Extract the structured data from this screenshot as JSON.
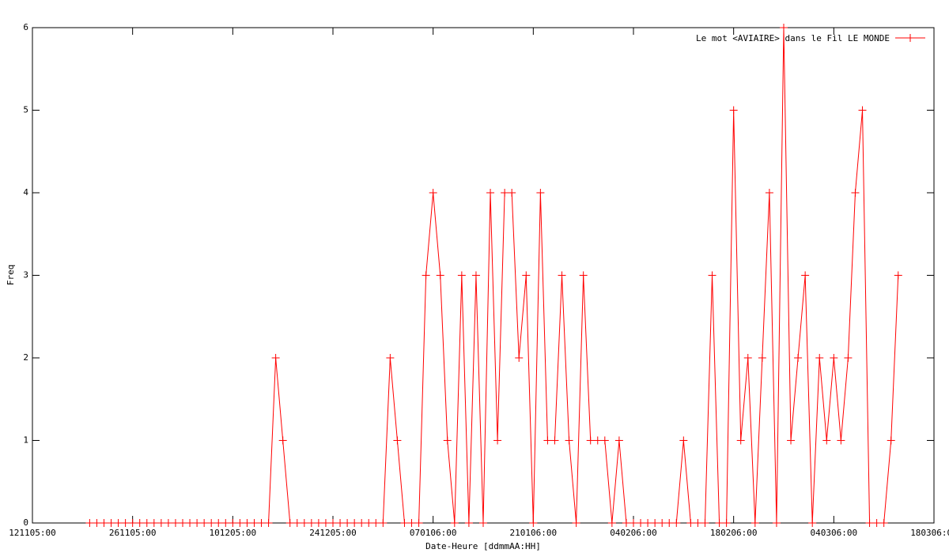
{
  "chart_data": {
    "type": "line",
    "legend_label": "Le mot <AVIAIRE> dans le Fil LE MONDE",
    "xlabel": "Date-Heure [ddmmAA:HH]",
    "ylabel": "Freq",
    "color": "#ff0000",
    "legend": "upper right",
    "grid": false,
    "x": [
      "2005-11-20",
      "2005-11-21",
      "2005-11-22",
      "2005-11-23",
      "2005-11-24",
      "2005-11-25",
      "2005-11-26",
      "2005-11-27",
      "2005-11-28",
      "2005-11-29",
      "2005-11-30",
      "2005-12-01",
      "2005-12-02",
      "2005-12-03",
      "2005-12-04",
      "2005-12-05",
      "2005-12-06",
      "2005-12-07",
      "2005-12-08",
      "2005-12-09",
      "2005-12-10",
      "2005-12-11",
      "2005-12-12",
      "2005-12-13",
      "2005-12-14",
      "2005-12-15",
      "2005-12-16",
      "2005-12-17",
      "2005-12-18",
      "2005-12-19",
      "2005-12-20",
      "2005-12-21",
      "2005-12-22",
      "2005-12-23",
      "2005-12-24",
      "2005-12-25",
      "2005-12-26",
      "2005-12-27",
      "2005-12-28",
      "2005-12-29",
      "2005-12-30",
      "2005-12-31",
      "2006-01-01",
      "2006-01-02",
      "2006-01-03",
      "2006-01-04",
      "2006-01-05",
      "2006-01-06",
      "2006-01-07",
      "2006-01-08",
      "2006-01-09",
      "2006-01-10",
      "2006-01-11",
      "2006-01-12",
      "2006-01-13",
      "2006-01-14",
      "2006-01-15",
      "2006-01-16",
      "2006-01-17",
      "2006-01-18",
      "2006-01-19",
      "2006-01-20",
      "2006-01-21",
      "2006-01-22",
      "2006-01-23",
      "2006-01-24",
      "2006-01-25",
      "2006-01-26",
      "2006-01-27",
      "2006-01-28",
      "2006-01-29",
      "2006-01-30",
      "2006-01-31",
      "2006-02-01",
      "2006-02-02",
      "2006-02-03",
      "2006-02-04",
      "2006-02-05",
      "2006-02-06",
      "2006-02-07",
      "2006-02-08",
      "2006-02-09",
      "2006-02-10",
      "2006-02-11",
      "2006-02-12",
      "2006-02-13",
      "2006-02-14",
      "2006-02-15",
      "2006-02-16",
      "2006-02-17",
      "2006-02-18",
      "2006-02-19",
      "2006-02-20",
      "2006-02-21",
      "2006-02-22",
      "2006-02-23",
      "2006-02-24",
      "2006-02-25",
      "2006-02-26",
      "2006-02-27",
      "2006-02-28",
      "2006-03-01",
      "2006-03-02",
      "2006-03-03",
      "2006-03-04",
      "2006-03-05",
      "2006-03-06",
      "2006-03-07",
      "2006-03-08",
      "2006-03-09",
      "2006-03-10",
      "2006-03-11",
      "2006-03-12",
      "2006-03-13"
    ],
    "values": [
      0,
      0,
      0,
      0,
      0,
      0,
      0,
      0,
      0,
      0,
      0,
      0,
      0,
      0,
      0,
      0,
      0,
      0,
      0,
      0,
      0,
      0,
      0,
      0,
      0,
      0,
      2,
      1,
      0,
      0,
      0,
      0,
      0,
      0,
      0,
      0,
      0,
      0,
      0,
      0,
      0,
      0,
      2,
      1,
      0,
      0,
      0,
      3,
      4,
      3,
      1,
      0,
      3,
      0,
      3,
      0,
      4,
      1,
      4,
      4,
      2,
      3,
      0,
      4,
      1,
      1,
      3,
      1,
      0,
      3,
      1,
      1,
      1,
      0,
      1,
      0,
      0,
      0,
      0,
      0,
      0,
      0,
      0,
      1,
      0,
      0,
      0,
      3,
      0,
      0,
      5,
      1,
      2,
      0,
      2,
      4,
      0,
      6,
      1,
      2,
      3,
      0,
      2,
      1,
      2,
      1,
      2,
      4,
      5,
      0,
      0,
      0,
      1,
      3
    ],
    "xlim": [
      "2005-11-12",
      "2006-03-18"
    ],
    "xticks": [
      {
        "value": "2005-11-12",
        "label": "121105:00"
      },
      {
        "value": "2005-11-26",
        "label": "261105:00"
      },
      {
        "value": "2005-12-10",
        "label": "101205:00"
      },
      {
        "value": "2005-12-24",
        "label": "241205:00"
      },
      {
        "value": "2006-01-07",
        "label": "070106:00"
      },
      {
        "value": "2006-01-21",
        "label": "210106:00"
      },
      {
        "value": "2006-02-04",
        "label": "040206:00"
      },
      {
        "value": "2006-02-18",
        "label": "180206:00"
      },
      {
        "value": "2006-03-04",
        "label": "040306:00"
      },
      {
        "value": "2006-03-18",
        "label": "180306:00"
      }
    ],
    "ylim": [
      0,
      6
    ],
    "yticks": [
      0,
      1,
      2,
      3,
      4,
      5,
      6
    ]
  }
}
